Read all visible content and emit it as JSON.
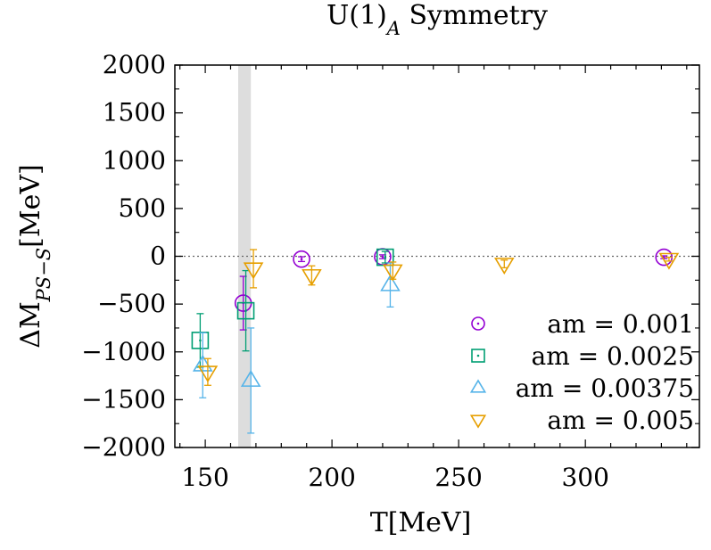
{
  "chart_data": {
    "type": "scatter",
    "title": "U(1)_A Symmetry",
    "xlabel": "T[MeV]",
    "ylabel": "ΔM_{PS−S}[MeV]",
    "xlim": [
      138,
      345
    ],
    "ylim": [
      -2000,
      2000
    ],
    "xticks": [
      150,
      200,
      250,
      300
    ],
    "yticks": [
      2000,
      1500,
      1000,
      500,
      0,
      -500,
      -1000,
      -1500,
      -2000
    ],
    "xtick_labels": [
      "150",
      "200",
      "250",
      "300"
    ],
    "ytick_labels": [
      "2000",
      "1500",
      "1000",
      "500",
      "0",
      "−500",
      "−1000",
      "−1500",
      "−2000"
    ],
    "reference_line_y": 0,
    "shaded_band_x": [
      163,
      168
    ],
    "legend_position": "bottom-right",
    "series": [
      {
        "name": "am = 0.001",
        "marker": "circle",
        "color": "#9400d3",
        "points": [
          {
            "x": 165,
            "y": -490,
            "err": 280
          },
          {
            "x": 188,
            "y": -30,
            "err": 25
          },
          {
            "x": 220,
            "y": -5,
            "err": 20
          },
          {
            "x": 331,
            "y": -10,
            "err": 15
          }
        ]
      },
      {
        "name": "am = 0.0025",
        "marker": "square",
        "color": "#009e73",
        "points": [
          {
            "x": 148,
            "y": -880,
            "err": 280
          },
          {
            "x": 166,
            "y": -570,
            "err": 420
          },
          {
            "x": 221,
            "y": -10,
            "err": 60
          }
        ]
      },
      {
        "name": "am = 0.00375",
        "marker": "triangle-up",
        "color": "#56b4e9",
        "points": [
          {
            "x": 149,
            "y": -1140,
            "err": 340
          },
          {
            "x": 168,
            "y": -1300,
            "err": 550
          },
          {
            "x": 223,
            "y": -300,
            "err": 230
          }
        ]
      },
      {
        "name": "am = 0.005",
        "marker": "triangle-down",
        "color": "#e69f00",
        "points": [
          {
            "x": 151,
            "y": -1210,
            "err": 140
          },
          {
            "x": 169,
            "y": -130,
            "err": 200
          },
          {
            "x": 192,
            "y": -200,
            "err": 100
          },
          {
            "x": 224,
            "y": -150,
            "err": 90
          },
          {
            "x": 268,
            "y": -80,
            "err": 40
          },
          {
            "x": 333,
            "y": -30,
            "err": 20
          }
        ]
      }
    ]
  }
}
